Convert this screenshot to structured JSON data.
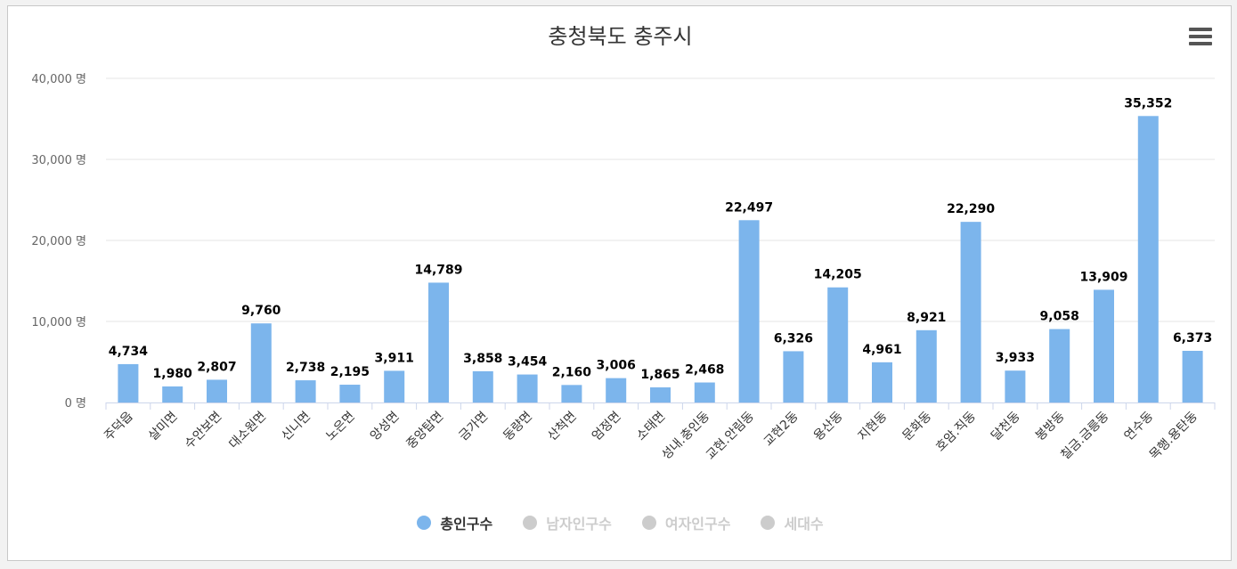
{
  "chart_data": {
    "type": "bar",
    "title": "충청북도 충주시",
    "categories": [
      "주덕읍",
      "살미면",
      "수안보면",
      "대소원면",
      "신니면",
      "노은면",
      "앙성면",
      "중앙탑면",
      "금가면",
      "동량면",
      "산척면",
      "엄정면",
      "소태면",
      "성내.충인동",
      "교현.안림동",
      "교현2동",
      "용산동",
      "지현동",
      "문화동",
      "호암.직동",
      "달천동",
      "봉방동",
      "칠금.금릉동",
      "연수동",
      "목행.용탄동"
    ],
    "series": [
      {
        "name": "총인구수",
        "values": [
          4734,
          1980,
          2807,
          9760,
          2738,
          2195,
          3911,
          14789,
          3858,
          3454,
          2160,
          3006,
          1865,
          2468,
          22497,
          6326,
          14205,
          4961,
          8921,
          22290,
          3933,
          9058,
          13909,
          35352,
          6373
        ]
      }
    ],
    "value_labels": [
      "4,734",
      "1,980",
      "2,807",
      "9,760",
      "2,738",
      "2,195",
      "3,911",
      "14,789",
      "3,858",
      "3,454",
      "2,160",
      "3,006",
      "1,865",
      "2,468",
      "22,497",
      "6,326",
      "14,205",
      "4,961",
      "8,921",
      "22,290",
      "3,933",
      "9,058",
      "13,909",
      "35,352",
      "6,373"
    ],
    "ylim": [
      0,
      40000
    ],
    "yticks": [
      0,
      10000,
      20000,
      30000,
      40000
    ],
    "ytick_labels": [
      "0 명",
      "10,000 명",
      "20,000 명",
      "30,000 명",
      "40,000 명"
    ],
    "grid": true,
    "bar_color": "#7cb5ec",
    "legend": {
      "placement": "bottom-center",
      "items": [
        {
          "label": "총인구수",
          "color": "#7cb5ec",
          "active": true
        },
        {
          "label": "남자인구수",
          "color": "#cccccc",
          "active": false
        },
        {
          "label": "여자인구수",
          "color": "#cccccc",
          "active": false
        },
        {
          "label": "세대수",
          "color": "#cccccc",
          "active": false
        }
      ]
    }
  },
  "menu_icon": "hamburger-menu-icon"
}
